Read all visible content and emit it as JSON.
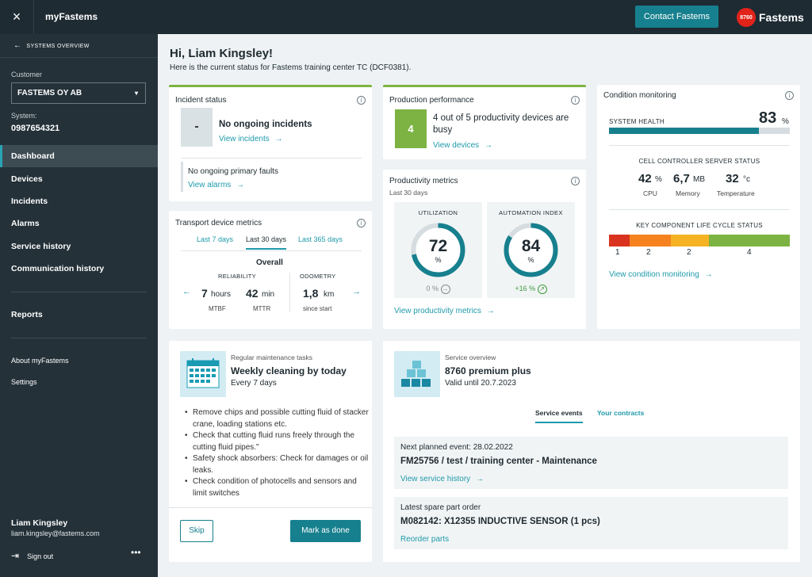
{
  "topbar": {
    "close_icon": "×",
    "app_title": "myFastems",
    "contact_label": "Contact Fastems",
    "logo_badge": "8760",
    "logo_text": "Fastems"
  },
  "sidebar": {
    "back_arrow": "←",
    "back_label": "SYSTEMS OVERVIEW",
    "customer_label": "Customer",
    "customer_value": "FASTEMS OY AB",
    "customer_caret": "▾",
    "system_label": "System:",
    "system_value": "0987654321",
    "nav": [
      "Dashboard",
      "Devices",
      "Incidents",
      "Alarms",
      "Service history",
      "Communication history"
    ],
    "reports": "Reports",
    "about": "About myFastems",
    "settings": "Settings",
    "user_name": "Liam Kingsley",
    "user_email": "liam.kingsley@fastems.com",
    "signout_icon": "⇥",
    "signout": "Sign out",
    "more": "•••"
  },
  "header": {
    "greeting": "Hi, Liam Kingsley!",
    "subtitle": "Here is the current status for Fastems training center TC (DCF0381)."
  },
  "info_icon": "i",
  "arrow": "→",
  "incident": {
    "title": "Incident status",
    "box": "-",
    "headline": "No ongoing incidents",
    "link": "View incidents",
    "faults": "No ongoing primary faults",
    "alarms_link": "View alarms"
  },
  "production": {
    "title": "Production performance",
    "count": "4",
    "text": "4 out of 5 productivity devices are busy",
    "link": "View devices"
  },
  "transport": {
    "title": "Transport device metrics",
    "tabs": [
      "Last 7 days",
      "Last 30 days",
      "Last 365 days"
    ],
    "overall": "Overall",
    "reliability": "RELIABILITY",
    "odometry": "ODOMETRY",
    "mtbf_value": "7",
    "mtbf_unit": "hours",
    "mtbf_label": "MTBF",
    "mttr_value": "42",
    "mttr_unit": "min",
    "mttr_label": "MTTR",
    "odo_value": "1,8",
    "odo_unit": "km",
    "odo_label": "since start",
    "left_arrow": "←",
    "right_arrow": "→"
  },
  "productivity": {
    "title": "Productivity metrics",
    "subtitle": "Last 30 days",
    "util_title": "UTILIZATION",
    "util_value": "72",
    "util_pct": 72,
    "util_change": "0 %",
    "util_change_icon": "→",
    "auto_title": "AUTOMATION INDEX",
    "auto_value": "84",
    "auto_pct": 84,
    "auto_change": "+16 %",
    "auto_change_icon": "↗",
    "percent_sign": "%",
    "link": "View productivity metrics"
  },
  "condition": {
    "title": "Condition monitoring",
    "health_label": "SYSTEM HEALTH",
    "health_value": "83",
    "health_pct": 83,
    "health_unit": "%",
    "server_title": "CELL CONTROLLER SERVER STATUS",
    "cpu_value": "42",
    "cpu_unit": "%",
    "cpu_label": "CPU",
    "mem_value": "6,7",
    "mem_unit": "MB",
    "mem_label": "Memory",
    "temp_value": "32",
    "temp_unit": "°c",
    "temp_label": "Temperature",
    "lifecycle_title": "KEY COMPONENT LIFE CYCLE STATUS",
    "lifecycle_labels": [
      "1",
      "2",
      "2",
      "4"
    ],
    "colors": {
      "red": "#d9331f",
      "orange": "#f5821f",
      "yellow": "#f5b324",
      "green": "#7cb342"
    },
    "link": "View condition monitoring"
  },
  "maintenance": {
    "caption": "Regular maintenance tasks",
    "title": "Weekly cleaning by today",
    "period": "Every 7 days",
    "calendar_icon": "calendar-icon",
    "tasks": [
      "Remove chips and possible cutting fluid of stacker crane, loading stations etc.",
      "Check that cutting fluid runs freely through the cutting fluid pipes.\"",
      "Safety shock absorbers: Check for damages or oil leaks.",
      "Check condition of photocells and sensors and limit switches"
    ],
    "skip": "Skip",
    "done": "Mark as done"
  },
  "service": {
    "caption": "Service overview",
    "title": "8760 premium plus",
    "valid": "Valid until 20.7.2023",
    "tabs": [
      "Service events",
      "Your contracts"
    ],
    "next_label": "Next planned event: 28.02.2022",
    "next_title": "FM25756 / test / training center - Maintenance",
    "history_link": "View service history",
    "order_label": "Latest spare part order",
    "order_title": "M082142: X12355 INDUCTIVE SENSOR (1 pcs)",
    "reorder_link": "Reorder parts"
  },
  "accent": "#17808e"
}
